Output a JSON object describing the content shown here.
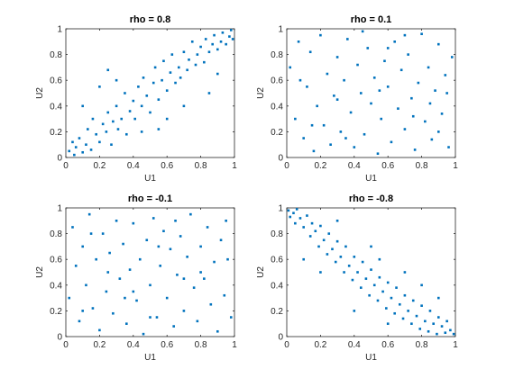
{
  "chart_data": [
    {
      "type": "scatter",
      "title": "rho = 0.8",
      "xlabel": "U1",
      "ylabel": "U2",
      "xlim": [
        0,
        1
      ],
      "ylim": [
        0,
        1
      ],
      "xticks": [
        "0",
        "0.2",
        "0.4",
        "0.6",
        "0.8",
        "1"
      ],
      "yticks": [
        "0",
        "0.2",
        "0.4",
        "0.6",
        "0.8",
        "1"
      ],
      "rho": 0.8,
      "marker_color": "#0072BD",
      "grid": false,
      "points": [
        [
          0.02,
          0.05
        ],
        [
          0.04,
          0.12
        ],
        [
          0.05,
          0.02
        ],
        [
          0.06,
          0.08
        ],
        [
          0.08,
          0.15
        ],
        [
          0.1,
          0.04
        ],
        [
          0.12,
          0.1
        ],
        [
          0.13,
          0.22
        ],
        [
          0.15,
          0.06
        ],
        [
          0.16,
          0.3
        ],
        [
          0.18,
          0.18
        ],
        [
          0.2,
          0.12
        ],
        [
          0.22,
          0.26
        ],
        [
          0.24,
          0.2
        ],
        [
          0.25,
          0.35
        ],
        [
          0.27,
          0.1
        ],
        [
          0.28,
          0.28
        ],
        [
          0.3,
          0.4
        ],
        [
          0.31,
          0.22
        ],
        [
          0.33,
          0.3
        ],
        [
          0.35,
          0.5
        ],
        [
          0.36,
          0.18
        ],
        [
          0.38,
          0.36
        ],
        [
          0.4,
          0.44
        ],
        [
          0.41,
          0.3
        ],
        [
          0.43,
          0.55
        ],
        [
          0.45,
          0.4
        ],
        [
          0.46,
          0.62
        ],
        [
          0.48,
          0.48
        ],
        [
          0.5,
          0.35
        ],
        [
          0.52,
          0.58
        ],
        [
          0.53,
          0.7
        ],
        [
          0.55,
          0.45
        ],
        [
          0.57,
          0.6
        ],
        [
          0.58,
          0.75
        ],
        [
          0.6,
          0.52
        ],
        [
          0.62,
          0.66
        ],
        [
          0.63,
          0.8
        ],
        [
          0.65,
          0.58
        ],
        [
          0.67,
          0.7
        ],
        [
          0.68,
          0.62
        ],
        [
          0.7,
          0.82
        ],
        [
          0.72,
          0.68
        ],
        [
          0.73,
          0.76
        ],
        [
          0.75,
          0.9
        ],
        [
          0.77,
          0.72
        ],
        [
          0.78,
          0.8
        ],
        [
          0.8,
          0.86
        ],
        [
          0.82,
          0.74
        ],
        [
          0.83,
          0.92
        ],
        [
          0.85,
          0.82
        ],
        [
          0.87,
          0.88
        ],
        [
          0.88,
          0.95
        ],
        [
          0.9,
          0.84
        ],
        [
          0.92,
          0.9
        ],
        [
          0.93,
          0.97
        ],
        [
          0.95,
          0.88
        ],
        [
          0.97,
          0.94
        ],
        [
          0.98,
          0.99
        ],
        [
          0.99,
          0.92
        ],
        [
          0.1,
          0.4
        ],
        [
          0.2,
          0.55
        ],
        [
          0.3,
          0.6
        ],
        [
          0.45,
          0.2
        ],
        [
          0.6,
          0.3
        ],
        [
          0.7,
          0.4
        ],
        [
          0.85,
          0.5
        ],
        [
          0.25,
          0.68
        ],
        [
          0.55,
          0.22
        ],
        [
          0.9,
          0.65
        ]
      ]
    },
    {
      "type": "scatter",
      "title": "rho = 0.1",
      "xlabel": "U1",
      "ylabel": "U2",
      "xlim": [
        0,
        1
      ],
      "ylim": [
        0,
        1
      ],
      "xticks": [
        "0",
        "0.2",
        "0.4",
        "0.6",
        "0.8",
        "1"
      ],
      "yticks": [
        "0",
        "0.2",
        "0.4",
        "0.6",
        "0.8",
        "1"
      ],
      "rho": 0.1,
      "marker_color": "#0072BD",
      "grid": false,
      "points": [
        [
          0.02,
          0.7
        ],
        [
          0.05,
          0.3
        ],
        [
          0.07,
          0.9
        ],
        [
          0.1,
          0.15
        ],
        [
          0.12,
          0.55
        ],
        [
          0.14,
          0.82
        ],
        [
          0.16,
          0.05
        ],
        [
          0.18,
          0.4
        ],
        [
          0.2,
          0.95
        ],
        [
          0.22,
          0.25
        ],
        [
          0.24,
          0.65
        ],
        [
          0.26,
          0.1
        ],
        [
          0.28,
          0.48
        ],
        [
          0.3,
          0.78
        ],
        [
          0.32,
          0.2
        ],
        [
          0.34,
          0.6
        ],
        [
          0.36,
          0.92
        ],
        [
          0.38,
          0.35
        ],
        [
          0.4,
          0.08
        ],
        [
          0.42,
          0.72
        ],
        [
          0.44,
          0.5
        ],
        [
          0.46,
          0.18
        ],
        [
          0.48,
          0.85
        ],
        [
          0.5,
          0.42
        ],
        [
          0.52,
          0.62
        ],
        [
          0.54,
          0.03
        ],
        [
          0.56,
          0.3
        ],
        [
          0.58,
          0.75
        ],
        [
          0.6,
          0.55
        ],
        [
          0.62,
          0.12
        ],
        [
          0.64,
          0.9
        ],
        [
          0.66,
          0.38
        ],
        [
          0.68,
          0.68
        ],
        [
          0.7,
          0.22
        ],
        [
          0.72,
          0.8
        ],
        [
          0.74,
          0.46
        ],
        [
          0.76,
          0.06
        ],
        [
          0.78,
          0.58
        ],
        [
          0.8,
          0.96
        ],
        [
          0.82,
          0.28
        ],
        [
          0.84,
          0.7
        ],
        [
          0.86,
          0.14
        ],
        [
          0.88,
          0.52
        ],
        [
          0.9,
          0.88
        ],
        [
          0.92,
          0.34
        ],
        [
          0.94,
          0.64
        ],
        [
          0.96,
          0.08
        ],
        [
          0.98,
          0.78
        ],
        [
          0.08,
          0.6
        ],
        [
          0.3,
          0.45
        ],
        [
          0.45,
          0.98
        ],
        [
          0.6,
          0.85
        ],
        [
          0.75,
          0.32
        ],
        [
          0.9,
          0.2
        ],
        [
          0.15,
          0.25
        ],
        [
          0.35,
          0.15
        ],
        [
          0.55,
          0.52
        ],
        [
          0.7,
          0.95
        ],
        [
          0.85,
          0.42
        ],
        [
          0.95,
          0.5
        ]
      ]
    },
    {
      "type": "scatter",
      "title": "rho = -0.1",
      "xlabel": "U1",
      "ylabel": "U2",
      "xlim": [
        0,
        1
      ],
      "ylim": [
        0,
        1
      ],
      "xticks": [
        "0",
        "0.2",
        "0.4",
        "0.6",
        "0.8",
        "1"
      ],
      "yticks": [
        "0",
        "0.2",
        "0.4",
        "0.6",
        "0.8",
        "1"
      ],
      "rho": -0.1,
      "marker_color": "#0072BD",
      "grid": false,
      "points": [
        [
          0.02,
          0.3
        ],
        [
          0.04,
          0.85
        ],
        [
          0.06,
          0.55
        ],
        [
          0.08,
          0.12
        ],
        [
          0.1,
          0.7
        ],
        [
          0.12,
          0.4
        ],
        [
          0.14,
          0.95
        ],
        [
          0.16,
          0.22
        ],
        [
          0.18,
          0.6
        ],
        [
          0.2,
          0.05
        ],
        [
          0.22,
          0.8
        ],
        [
          0.24,
          0.35
        ],
        [
          0.26,
          0.65
        ],
        [
          0.28,
          0.18
        ],
        [
          0.3,
          0.9
        ],
        [
          0.32,
          0.45
        ],
        [
          0.34,
          0.72
        ],
        [
          0.36,
          0.1
        ],
        [
          0.38,
          0.52
        ],
        [
          0.4,
          0.88
        ],
        [
          0.42,
          0.28
        ],
        [
          0.44,
          0.6
        ],
        [
          0.46,
          0.02
        ],
        [
          0.48,
          0.75
        ],
        [
          0.5,
          0.4
        ],
        [
          0.52,
          0.92
        ],
        [
          0.54,
          0.15
        ],
        [
          0.56,
          0.55
        ],
        [
          0.58,
          0.82
        ],
        [
          0.6,
          0.3
        ],
        [
          0.62,
          0.68
        ],
        [
          0.64,
          0.08
        ],
        [
          0.66,
          0.48
        ],
        [
          0.68,
          0.78
        ],
        [
          0.7,
          0.2
        ],
        [
          0.72,
          0.62
        ],
        [
          0.74,
          0.95
        ],
        [
          0.76,
          0.38
        ],
        [
          0.78,
          0.12
        ],
        [
          0.8,
          0.7
        ],
        [
          0.82,
          0.45
        ],
        [
          0.84,
          0.85
        ],
        [
          0.86,
          0.25
        ],
        [
          0.88,
          0.58
        ],
        [
          0.9,
          0.04
        ],
        [
          0.92,
          0.75
        ],
        [
          0.94,
          0.32
        ],
        [
          0.96,
          0.6
        ],
        [
          0.98,
          0.15
        ],
        [
          0.1,
          0.2
        ],
        [
          0.25,
          0.5
        ],
        [
          0.4,
          0.35
        ],
        [
          0.55,
          0.7
        ],
        [
          0.65,
          0.9
        ],
        [
          0.8,
          0.5
        ],
        [
          0.95,
          0.9
        ],
        [
          0.35,
          0.3
        ],
        [
          0.5,
          0.15
        ],
        [
          0.7,
          0.45
        ],
        [
          0.15,
          0.8
        ]
      ]
    },
    {
      "type": "scatter",
      "title": "rho = -0.8",
      "xlabel": "U1",
      "ylabel": "U2",
      "xlim": [
        0,
        1
      ],
      "ylim": [
        0,
        1
      ],
      "xticks": [
        "0",
        "0.2",
        "0.4",
        "0.6",
        "0.8",
        "1"
      ],
      "yticks": [
        "0",
        "0.2",
        "0.4",
        "0.6",
        "0.8",
        "1"
      ],
      "rho": -0.8,
      "marker_color": "#0072BD",
      "grid": false,
      "points": [
        [
          0.01,
          0.98
        ],
        [
          0.02,
          0.93
        ],
        [
          0.04,
          0.96
        ],
        [
          0.05,
          0.88
        ],
        [
          0.06,
          0.99
        ],
        [
          0.08,
          0.92
        ],
        [
          0.1,
          0.85
        ],
        [
          0.12,
          0.94
        ],
        [
          0.14,
          0.78
        ],
        [
          0.15,
          0.88
        ],
        [
          0.17,
          0.82
        ],
        [
          0.19,
          0.7
        ],
        [
          0.2,
          0.86
        ],
        [
          0.22,
          0.75
        ],
        [
          0.24,
          0.64
        ],
        [
          0.25,
          0.8
        ],
        [
          0.27,
          0.68
        ],
        [
          0.29,
          0.58
        ],
        [
          0.3,
          0.74
        ],
        [
          0.32,
          0.62
        ],
        [
          0.34,
          0.5
        ],
        [
          0.35,
          0.7
        ],
        [
          0.37,
          0.55
        ],
        [
          0.39,
          0.44
        ],
        [
          0.4,
          0.62
        ],
        [
          0.42,
          0.5
        ],
        [
          0.44,
          0.38
        ],
        [
          0.45,
          0.58
        ],
        [
          0.47,
          0.45
        ],
        [
          0.49,
          0.32
        ],
        [
          0.5,
          0.52
        ],
        [
          0.52,
          0.4
        ],
        [
          0.54,
          0.28
        ],
        [
          0.55,
          0.46
        ],
        [
          0.57,
          0.35
        ],
        [
          0.59,
          0.22
        ],
        [
          0.6,
          0.42
        ],
        [
          0.62,
          0.3
        ],
        [
          0.64,
          0.18
        ],
        [
          0.65,
          0.38
        ],
        [
          0.67,
          0.25
        ],
        [
          0.69,
          0.14
        ],
        [
          0.7,
          0.32
        ],
        [
          0.72,
          0.2
        ],
        [
          0.74,
          0.1
        ],
        [
          0.75,
          0.28
        ],
        [
          0.77,
          0.16
        ],
        [
          0.79,
          0.06
        ],
        [
          0.8,
          0.24
        ],
        [
          0.82,
          0.12
        ],
        [
          0.84,
          0.04
        ],
        [
          0.85,
          0.2
        ],
        [
          0.87,
          0.1
        ],
        [
          0.89,
          0.02
        ],
        [
          0.9,
          0.15
        ],
        [
          0.92,
          0.08
        ],
        [
          0.94,
          0.03
        ],
        [
          0.95,
          0.12
        ],
        [
          0.97,
          0.05
        ],
        [
          0.99,
          0.02
        ],
        [
          0.1,
          0.6
        ],
        [
          0.3,
          0.9
        ],
        [
          0.5,
          0.7
        ],
        [
          0.7,
          0.5
        ],
        [
          0.9,
          0.3
        ],
        [
          0.4,
          0.2
        ],
        [
          0.6,
          0.1
        ],
        [
          0.2,
          0.5
        ],
        [
          0.8,
          0.4
        ],
        [
          0.55,
          0.6
        ]
      ]
    }
  ]
}
